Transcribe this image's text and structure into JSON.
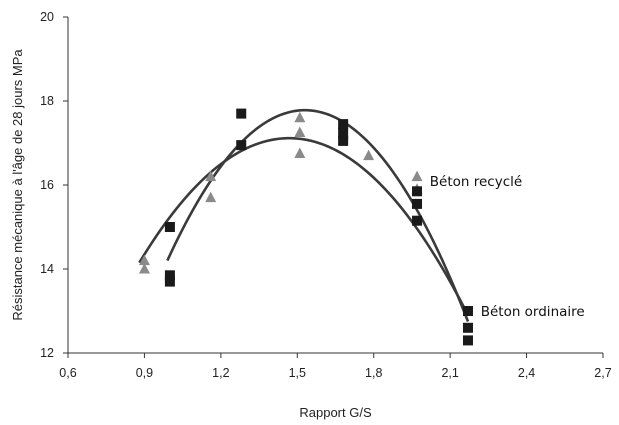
{
  "chart_data": {
    "type": "scatter",
    "title": "",
    "xlabel": "Rapport G/S",
    "ylabel": "Résistance mécanique à l'âge de 28 jours MPa",
    "xlim": [
      0.6,
      2.7
    ],
    "ylim": [
      12,
      20
    ],
    "x_ticks": [
      "0,6",
      "0,9",
      "1,2",
      "1,5",
      "1,8",
      "2,1",
      "2,4",
      "2,7"
    ],
    "y_ticks": [
      "12",
      "14",
      "16",
      "18",
      "20"
    ],
    "grid": false,
    "legend": "none",
    "series": [
      {
        "name": "Béton recyclé",
        "marker": "triangle",
        "color": "#8a8a8a",
        "points": [
          [
            0.9,
            14.2
          ],
          [
            0.9,
            14.0
          ],
          [
            1.16,
            16.2
          ],
          [
            1.16,
            15.7
          ],
          [
            1.51,
            17.6
          ],
          [
            1.51,
            17.25
          ],
          [
            1.51,
            16.75
          ],
          [
            1.68,
            17.2
          ],
          [
            1.78,
            16.7
          ],
          [
            1.97,
            16.2
          ],
          [
            1.97,
            15.9
          ]
        ],
        "fit_curve": [
          [
            0.88,
            14.15
          ],
          [
            1.51,
            17.1
          ],
          [
            2.17,
            12.9
          ]
        ]
      },
      {
        "name": "Béton ordinaire",
        "marker": "square",
        "color": "#1a1a1a",
        "points": [
          [
            1.0,
            15.0
          ],
          [
            1.0,
            13.85
          ],
          [
            1.0,
            13.7
          ],
          [
            1.28,
            17.7
          ],
          [
            1.28,
            16.95
          ],
          [
            1.68,
            17.45
          ],
          [
            1.68,
            17.25
          ],
          [
            1.68,
            17.05
          ],
          [
            1.97,
            15.85
          ],
          [
            1.97,
            15.55
          ],
          [
            1.97,
            15.15
          ],
          [
            2.17,
            13.0
          ],
          [
            2.17,
            12.6
          ],
          [
            2.17,
            12.3
          ]
        ],
        "fit_curve": [
          [
            0.99,
            14.2
          ],
          [
            1.52,
            17.78
          ],
          [
            2.17,
            12.75
          ]
        ]
      }
    ],
    "annotations": [
      {
        "text": "Béton recyclé",
        "x": 2.02,
        "y": 16.1
      },
      {
        "text": "Béton ordinaire",
        "x": 2.22,
        "y": 13.0
      }
    ]
  }
}
